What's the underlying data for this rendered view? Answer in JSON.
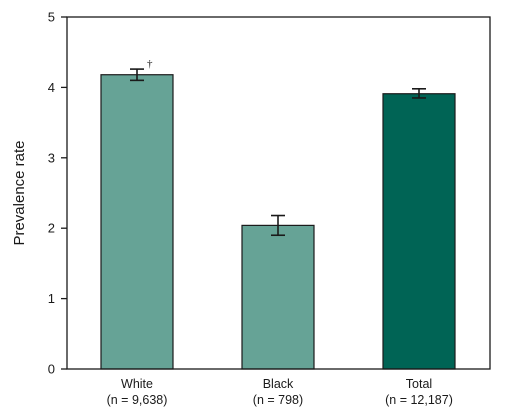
{
  "chart_data": {
    "type": "bar",
    "ylabel": "Prevalence rate",
    "xlabel": "",
    "ylim": [
      0,
      5
    ],
    "yticks": [
      "0",
      "1",
      "2",
      "3",
      "4",
      "5"
    ],
    "categories": [
      {
        "name": "White",
        "n_label": "(n = 9,638)",
        "color": "#66a396",
        "annotation": "†"
      },
      {
        "name": "Black",
        "n_label": "(n = 798)",
        "color": "#66a396",
        "annotation": ""
      },
      {
        "name": "Total",
        "n_label": "(n = 12,187)",
        "color": "#006455",
        "annotation": ""
      }
    ],
    "values": [
      4.18,
      2.04,
      3.91
    ],
    "error_low": [
      4.1,
      1.9,
      3.85
    ],
    "error_high": [
      4.26,
      2.18,
      3.98
    ],
    "grid": false
  }
}
